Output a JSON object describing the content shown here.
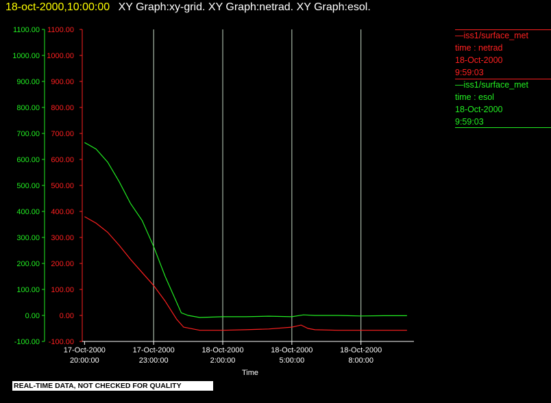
{
  "header": {
    "timestamp": "18-oct-2000,10:00:00",
    "titles": "XY Graph:xy-grid.  XY Graph:netrad.  XY Graph:esol."
  },
  "colors": {
    "netrad": "#ff2020",
    "esol": "#22ee22",
    "grid": "#c8dcc8",
    "axis": "#ffffff",
    "timestamp": "#ffff00"
  },
  "legend": [
    {
      "name": "—iss1/surface_met",
      "var": "time : netrad",
      "date": "18-Oct-2000",
      "time": "9:59:03",
      "color": "#ff2020"
    },
    {
      "name": "—iss1/surface_met",
      "var": "time : esol",
      "date": "18-Oct-2000",
      "time": "9:59:03",
      "color": "#22ee22"
    }
  ],
  "disclaimer": "REAL-TIME DATA, NOT CHECKED FOR QUALITY",
  "chart_data": {
    "type": "line",
    "xlabel": "Time",
    "x_unit": "hours since 17-Oct-2000 20:00:00",
    "xlim": [
      -0.1,
      14.3
    ],
    "ylim": [
      -100,
      1100
    ],
    "y_ticks": [
      "1100.00",
      "1000.00",
      "900.00",
      "800.00",
      "700.00",
      "600.00",
      "500.00",
      "400.00",
      "300.00",
      "200.00",
      "100.00",
      "0.00",
      "-100.00"
    ],
    "x_ticks": [
      {
        "x": 0,
        "date": "17-Oct-2000",
        "time": "20:00:00"
      },
      {
        "x": 3,
        "date": "17-Oct-2000",
        "time": "23:00:00"
      },
      {
        "x": 6,
        "date": "18-Oct-2000",
        "time": "2:00:00"
      },
      {
        "x": 9,
        "date": "18-Oct-2000",
        "time": "5:00:00"
      },
      {
        "x": 12,
        "date": "18-Oct-2000",
        "time": "8:00:00"
      }
    ],
    "grid_x": true,
    "series": [
      {
        "name": "esol",
        "x": [
          0,
          0.5,
          1,
          1.5,
          2,
          2.5,
          3,
          3.5,
          4,
          4.2,
          4.5,
          5,
          6,
          7,
          8,
          9,
          9.5,
          10,
          11,
          12,
          13,
          14
        ],
        "y": [
          665,
          640,
          590,
          515,
          430,
          365,
          265,
          150,
          50,
          10,
          0,
          -8,
          -5,
          -5,
          -3,
          -5,
          2,
          0,
          0,
          -2,
          -1,
          -1
        ]
      },
      {
        "name": "netrad",
        "x": [
          0,
          0.5,
          1,
          1.5,
          2,
          2.5,
          3,
          3.5,
          4,
          4.3,
          5,
          6,
          7,
          8,
          9,
          9.4,
          9.7,
          10,
          11,
          12,
          13,
          14
        ],
        "y": [
          380,
          355,
          320,
          270,
          215,
          165,
          115,
          55,
          -15,
          -45,
          -57,
          -57,
          -55,
          -52,
          -45,
          -37,
          -50,
          -55,
          -57,
          -57,
          -57,
          -57
        ]
      }
    ]
  }
}
